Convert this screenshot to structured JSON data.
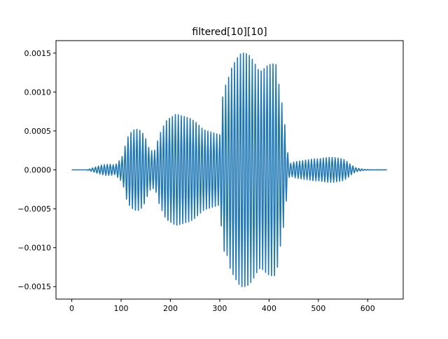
{
  "chart_data": {
    "type": "line",
    "title": "filtered[10][10]",
    "xlabel": "",
    "ylabel": "",
    "xlim": [
      -32,
      672
    ],
    "ylim": [
      -0.00166,
      0.00166
    ],
    "xticks": [
      0,
      100,
      200,
      300,
      400,
      500,
      600
    ],
    "xtick_labels": [
      "0",
      "100",
      "200",
      "300",
      "400",
      "500",
      "600"
    ],
    "yticks": [
      -0.0015,
      -0.001,
      -0.0005,
      0.0,
      0.0005,
      0.001,
      0.0015
    ],
    "ytick_labels": [
      "−0.0015",
      "−0.0010",
      "−0.0005",
      "0.0000",
      "0.0005",
      "0.0010",
      "0.0015"
    ],
    "grid": false,
    "legend": "none",
    "series": [
      {
        "color": "#1f77b4",
        "n_samples": 640,
        "oscillation_period": 6,
        "envelope": {
          "x": [
            0,
            30,
            40,
            50,
            60,
            70,
            80,
            88,
            92,
            100,
            105,
            110,
            115,
            120,
            125,
            130,
            135,
            140,
            145,
            150,
            155,
            160,
            165,
            170,
            175,
            180,
            185,
            190,
            195,
            200,
            205,
            210,
            215,
            220,
            225,
            230,
            235,
            240,
            245,
            250,
            255,
            260,
            265,
            270,
            275,
            280,
            285,
            290,
            295,
            300,
            305,
            310,
            315,
            320,
            325,
            330,
            335,
            340,
            345,
            350,
            355,
            360,
            365,
            370,
            375,
            380,
            385,
            390,
            395,
            400,
            405,
            410,
            415,
            420,
            425,
            430,
            435,
            440,
            445,
            450,
            460,
            470,
            480,
            490,
            500,
            510,
            520,
            530,
            540,
            550,
            555,
            560,
            565,
            570,
            575,
            580,
            590,
            600,
            640
          ],
          "amplitude": [
            0,
            0,
            2e-05,
            4e-05,
            6e-05,
            7e-05,
            7e-05,
            6e-05,
            9e-05,
            0.00014,
            0.00022,
            0.00036,
            0.00044,
            0.00048,
            0.00051,
            0.00052,
            0.00052,
            0.0005,
            0.00046,
            0.0004,
            0.0003,
            0.00025,
            0.00024,
            0.00026,
            0.0004,
            0.00048,
            0.00055,
            0.00062,
            0.00065,
            0.00067,
            0.00069,
            0.00071,
            0.00071,
            0.0007,
            0.00069,
            0.00068,
            0.00067,
            0.00066,
            0.00064,
            0.00062,
            0.00059,
            0.00056,
            0.00053,
            0.00051,
            0.0005,
            0.00049,
            0.00048,
            0.00047,
            0.00046,
            0.00045,
            0.0009,
            0.00108,
            0.0011,
            0.00125,
            0.00132,
            0.00138,
            0.00143,
            0.00148,
            0.0015,
            0.0015,
            0.00149,
            0.00147,
            0.00143,
            0.00138,
            0.00132,
            0.00127,
            0.00127,
            0.0013,
            0.00133,
            0.00135,
            0.00136,
            0.00136,
            0.00135,
            0.0011,
            0.0009,
            0.0007,
            0.0004,
            0.0001,
            8e-05,
            0.0001,
            0.00011,
            0.00012,
            0.00013,
            0.00014,
            0.00014,
            0.00015,
            0.00016,
            0.00016,
            0.00015,
            0.00014,
            0.00012,
            0.0001,
            7e-05,
            5e-05,
            3e-05,
            2e-05,
            1e-05,
            3e-06,
            0
          ]
        }
      }
    ]
  }
}
